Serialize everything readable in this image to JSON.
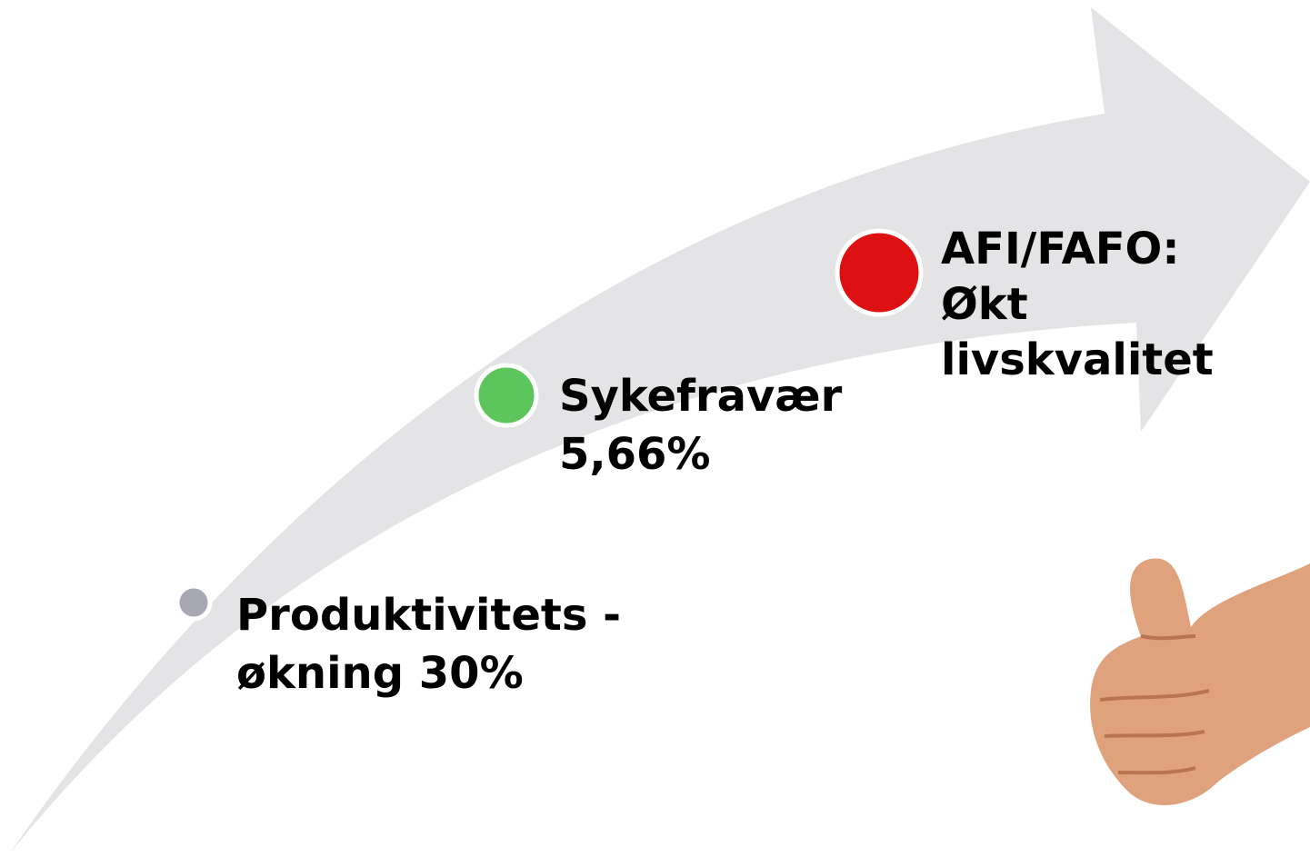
{
  "milestones": [
    {
      "lines": [
        "Produktivitets -",
        "økning 30%"
      ]
    },
    {
      "lines": [
        "Sykefravær",
        "5,66%"
      ]
    },
    {
      "lines": [
        "AFI/FAFO:",
        "Økt",
        "livskvalitet"
      ]
    }
  ]
}
